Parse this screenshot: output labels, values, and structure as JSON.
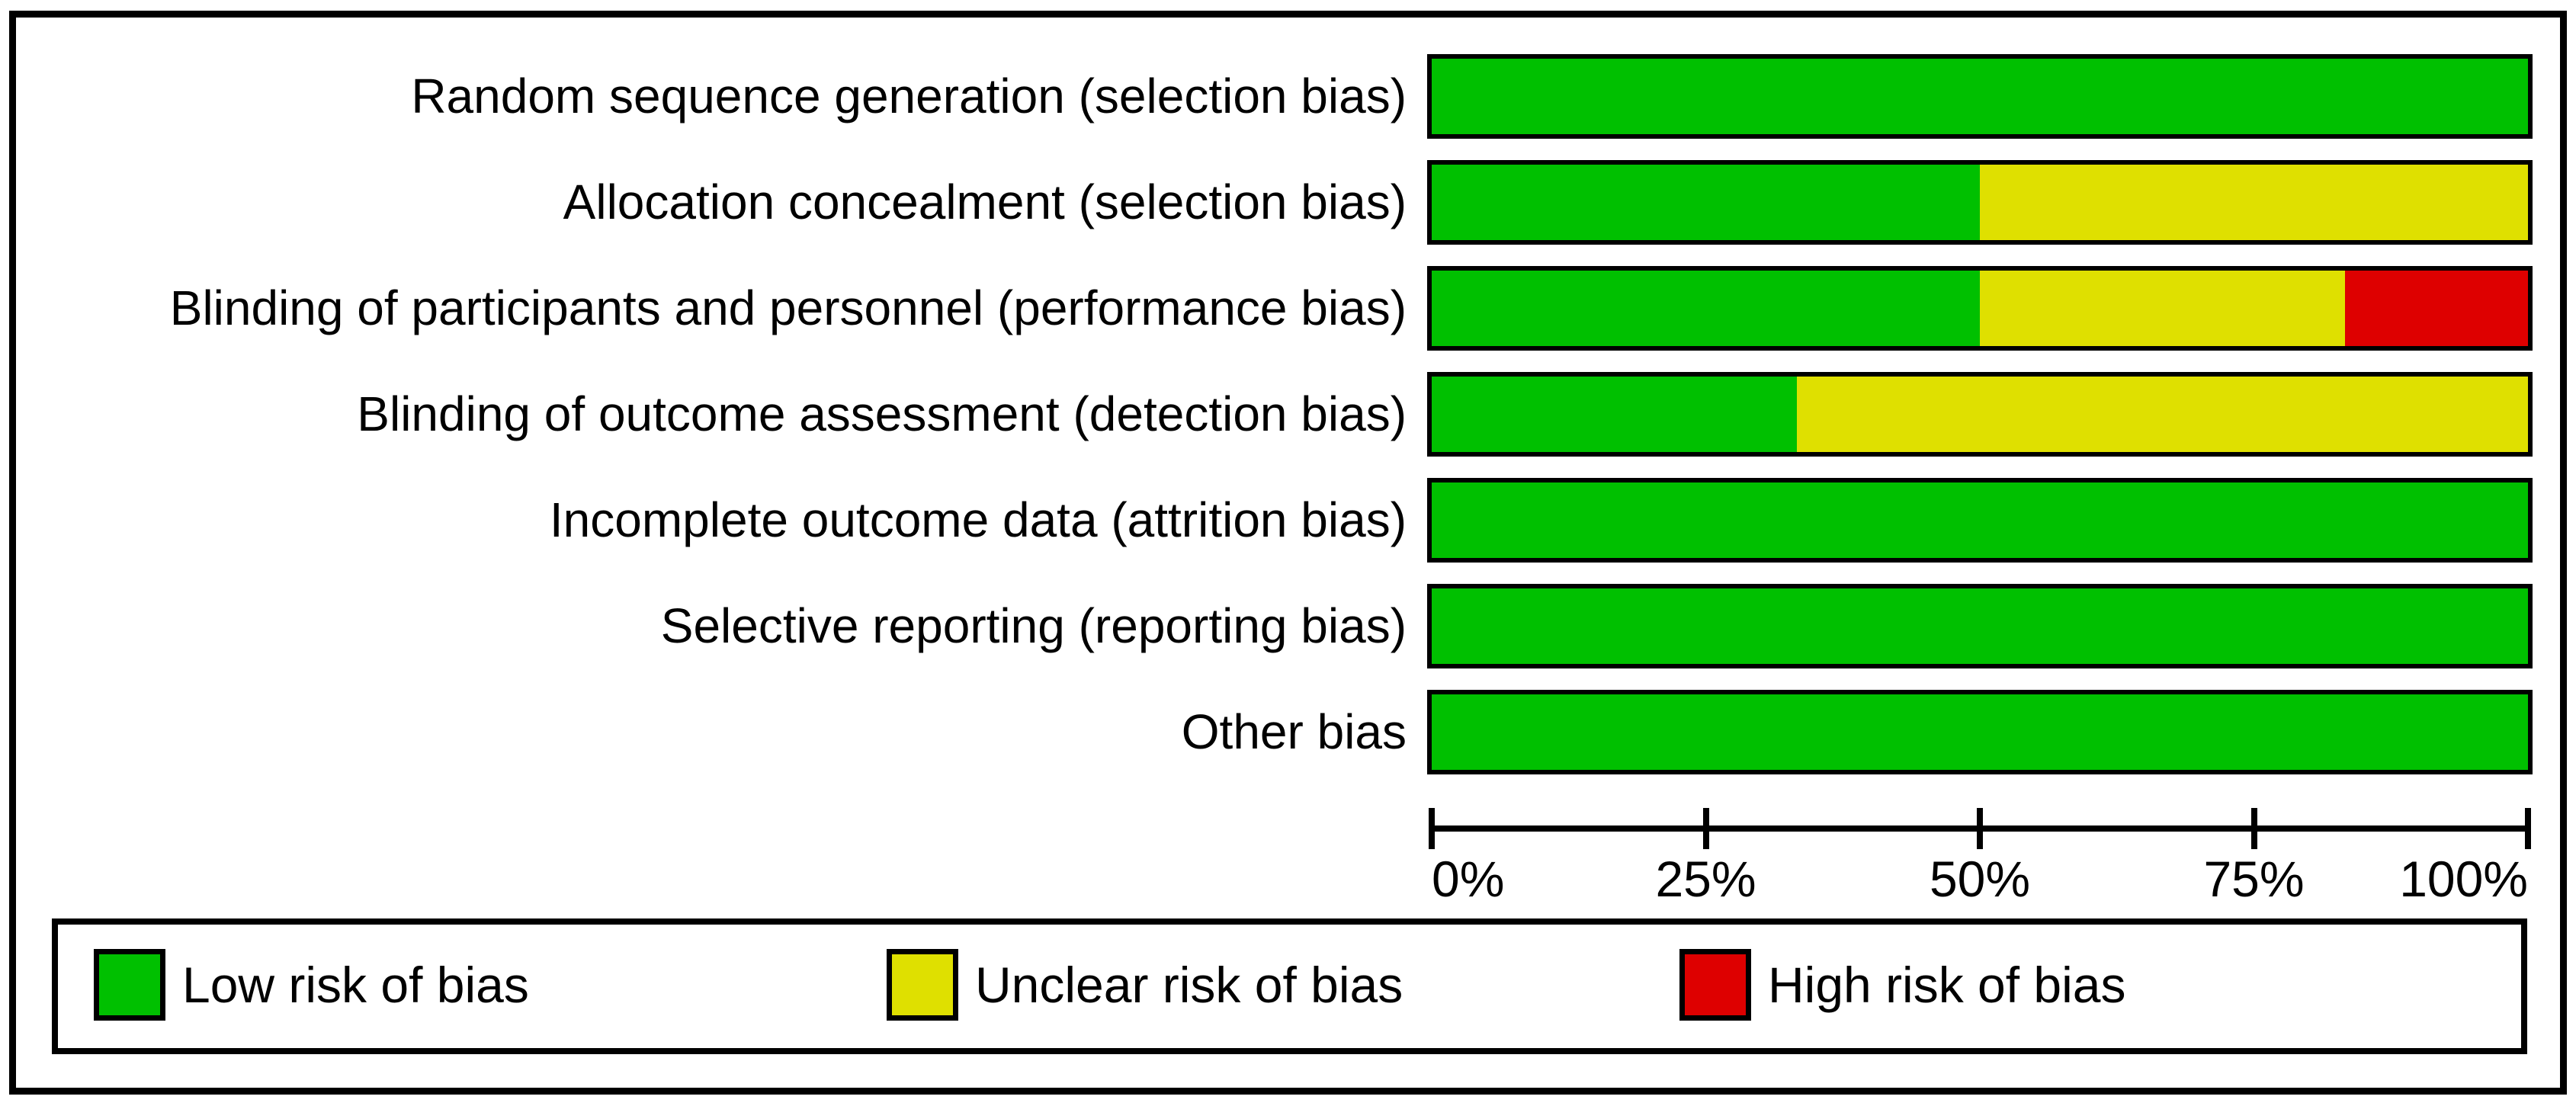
{
  "chart_data": {
    "type": "bar",
    "stacked": true,
    "orientation": "horizontal",
    "title": "",
    "xlabel": "",
    "ylabel": "",
    "categories": [
      "Random sequence generation (selection bias)",
      "Allocation concealment (selection bias)",
      "Blinding of participants and personnel (performance bias)",
      "Blinding of outcome assessment (detection bias)",
      "Incomplete outcome data (attrition bias)",
      "Selective reporting (reporting bias)",
      "Other bias"
    ],
    "series": [
      {
        "name": "Low risk of bias",
        "key": "low",
        "color": "#00C000",
        "values": [
          100,
          50,
          50,
          33.33,
          100,
          100,
          100
        ]
      },
      {
        "name": "Unclear risk of bias",
        "key": "unclear",
        "color": "#DFE000",
        "values": [
          0,
          50,
          33.33,
          66.67,
          0,
          0,
          0
        ]
      },
      {
        "name": "High risk of bias",
        "key": "high",
        "color": "#DE0000",
        "values": [
          0,
          0,
          16.67,
          0,
          0,
          0,
          0
        ]
      }
    ],
    "axis": {
      "min": 0,
      "max": 100,
      "tick_values": [
        0,
        25,
        50,
        75,
        100
      ],
      "tick_labels": [
        "0%",
        "25%",
        "50%",
        "75%",
        "100%"
      ],
      "grid": false
    },
    "legend": {
      "position": "bottom",
      "items": [
        {
          "key": "low",
          "label": "Low risk of bias",
          "color": "#00C000"
        },
        {
          "key": "unclear",
          "label": "Unclear risk of bias",
          "color": "#DFE000"
        },
        {
          "key": "high",
          "label": "High risk of bias",
          "color": "#DE0000"
        }
      ]
    },
    "colors": {
      "low_risk": "#00C000",
      "unclear_risk": "#DFE000",
      "high_risk": "#DE0000",
      "border": "#000000",
      "background": "#FFFFFF"
    }
  }
}
